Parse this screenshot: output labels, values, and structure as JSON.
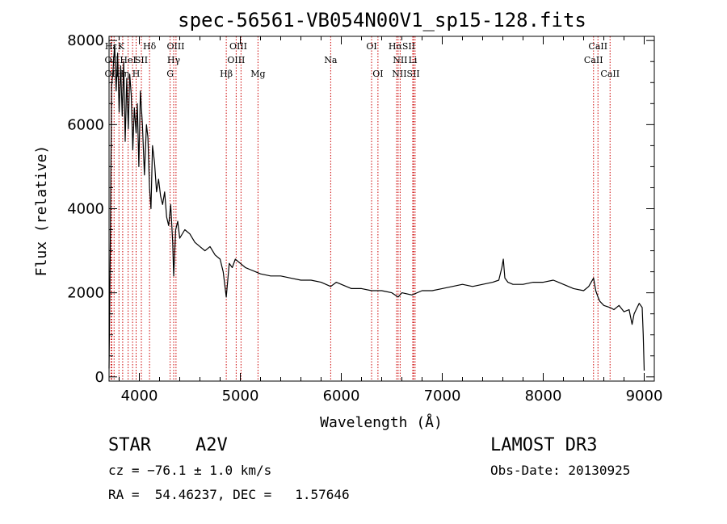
{
  "chart_data": {
    "type": "line",
    "title": "spec-56561-VB054N00V1_sp15-128.fits",
    "xlabel": "Wavelength (Å)",
    "ylabel": "Flux (relative)",
    "xlim": [
      3700,
      9100
    ],
    "ylim": [
      -100,
      8100
    ],
    "x_ticks": [
      4000,
      5000,
      6000,
      7000,
      8000,
      9000
    ],
    "y_ticks": [
      0,
      2000,
      4000,
      6000,
      8000
    ],
    "x_tick_labels": [
      "4000",
      "5000",
      "6000",
      "7000",
      "8000",
      "9000"
    ],
    "y_tick_labels": [
      "0",
      "2000",
      "4000",
      "6000",
      "8000"
    ],
    "line_color": "#000000",
    "marker_color": "#cc0000",
    "series": [
      {
        "name": "flux",
        "x": [
          3700,
          3712,
          3725,
          3740,
          3755,
          3770,
          3785,
          3800,
          3815,
          3830,
          3845,
          3860,
          3875,
          3890,
          3905,
          3920,
          3935,
          3950,
          3968,
          3980,
          3995,
          4010,
          4030,
          4050,
          4070,
          4085,
          4101,
          4115,
          4130,
          4150,
          4170,
          4190,
          4210,
          4230,
          4250,
          4270,
          4290,
          4310,
          4330,
          4340,
          4360,
          4380,
          4400,
          4450,
          4500,
          4550,
          4600,
          4650,
          4700,
          4750,
          4800,
          4830,
          4861,
          4890,
          4920,
          4950,
          5000,
          5050,
          5100,
          5150,
          5200,
          5300,
          5400,
          5500,
          5600,
          5700,
          5800,
          5895,
          5950,
          6000,
          6100,
          6200,
          6300,
          6400,
          6500,
          6563,
          6600,
          6700,
          6800,
          6900,
          7000,
          7100,
          7200,
          7300,
          7400,
          7500,
          7560,
          7590,
          7605,
          7620,
          7650,
          7700,
          7800,
          7900,
          8000,
          8100,
          8150,
          8200,
          8300,
          8400,
          8450,
          8498,
          8520,
          8542,
          8560,
          8600,
          8662,
          8700,
          8750,
          8800,
          8850,
          8880,
          8900,
          8920,
          8950,
          8980,
          8990,
          9000
        ],
        "y": [
          200,
          3000,
          6900,
          7300,
          7900,
          6800,
          7700,
          6300,
          7400,
          6200,
          7500,
          5600,
          7100,
          5900,
          7200,
          6700,
          5400,
          6400,
          5800,
          6500,
          5000,
          6800,
          6000,
          4800,
          6000,
          5700,
          4500,
          4000,
          5500,
          5100,
          4400,
          4700,
          4300,
          4100,
          4400,
          3800,
          3600,
          4100,
          3200,
          2400,
          3500,
          3700,
          3300,
          3500,
          3400,
          3200,
          3100,
          3000,
          3100,
          2900,
          2800,
          2500,
          1900,
          2700,
          2600,
          2800,
          2700,
          2600,
          2550,
          2500,
          2450,
          2400,
          2400,
          2350,
          2300,
          2300,
          2250,
          2150,
          2250,
          2200,
          2100,
          2100,
          2050,
          2050,
          2000,
          1900,
          2000,
          1950,
          2050,
          2050,
          2100,
          2150,
          2200,
          2150,
          2200,
          2250,
          2300,
          2600,
          2800,
          2350,
          2250,
          2200,
          2200,
          2250,
          2250,
          2300,
          2250,
          2200,
          2100,
          2050,
          2150,
          2350,
          2050,
          1900,
          1800,
          1700,
          1650,
          1600,
          1700,
          1550,
          1600,
          1250,
          1500,
          1600,
          1750,
          1650,
          1000,
          150
        ]
      }
    ],
    "line_markers": [
      {
        "label": "Hε",
        "x": 3720,
        "row": 1
      },
      {
        "label": "K",
        "x": 3820,
        "row": 1
      },
      {
        "label": "Hδ",
        "x": 4101,
        "row": 1
      },
      {
        "label": "OIII",
        "x": 4360,
        "row": 1
      },
      {
        "label": "OIII",
        "x": 4980,
        "row": 1
      },
      {
        "label": "OI",
        "x": 6300,
        "row": 1
      },
      {
        "label": "HαSII",
        "x": 6600,
        "row": 1
      },
      {
        "label": "CaII",
        "x": 8542,
        "row": 1
      },
      {
        "label": "OII",
        "x": 3727,
        "row": 2
      },
      {
        "label": "HeI",
        "x": 3889,
        "row": 2
      },
      {
        "label": "SII",
        "x": 4020,
        "row": 2
      },
      {
        "label": "Hγ",
        "x": 4340,
        "row": 2
      },
      {
        "label": "OIII",
        "x": 4959,
        "row": 2
      },
      {
        "label": "Na",
        "x": 5895,
        "row": 2
      },
      {
        "label": "NII",
        "x": 6583,
        "row": 2
      },
      {
        "label": "Li",
        "x": 6708,
        "row": 2
      },
      {
        "label": "CaII",
        "x": 8498,
        "row": 2
      },
      {
        "label": "OII",
        "x": 3727,
        "row": 3
      },
      {
        "label": "Hη",
        "x": 3835,
        "row": 3
      },
      {
        "label": "H",
        "x": 3968,
        "row": 3
      },
      {
        "label": "G",
        "x": 4305,
        "row": 3
      },
      {
        "label": "Hβ",
        "x": 4861,
        "row": 3
      },
      {
        "label": "Mg",
        "x": 5175,
        "row": 3
      },
      {
        "label": "OI",
        "x": 6363,
        "row": 3
      },
      {
        "label": "NIISII",
        "x": 6640,
        "row": 3
      },
      {
        "label": "CaII",
        "x": 8662,
        "row": 3
      }
    ],
    "marker_line_x": [
      3720,
      3727,
      3750,
      3798,
      3835,
      3889,
      3933,
      3968,
      4020,
      4101,
      4305,
      4340,
      4363,
      4861,
      4959,
      5007,
      5175,
      5895,
      6300,
      6363,
      6548,
      6563,
      6583,
      6708,
      6716,
      6731,
      8498,
      8542,
      8662
    ]
  },
  "info": {
    "object_class": "STAR",
    "subclass": "A2V",
    "redshift": "cz = −76.1 ± 1.0 km/s",
    "coords": "RA =  54.46237, DEC =   1.57646",
    "survey": "LAMOST DR3",
    "obs_date": "Obs-Date: 20130925"
  }
}
